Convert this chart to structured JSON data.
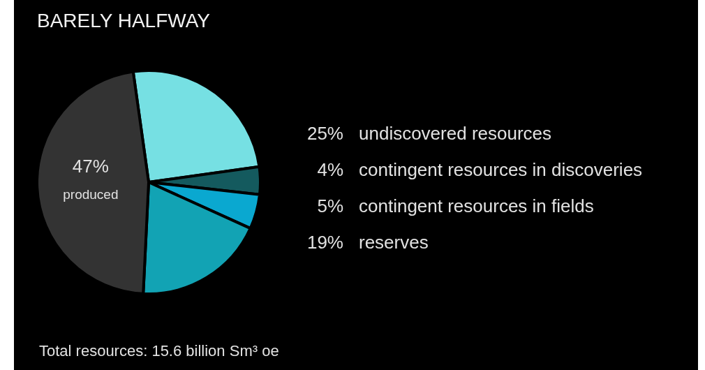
{
  "chart_data": {
    "type": "pie",
    "title": "BARELY HALFWAY",
    "categories": [
      "undiscovered resources",
      "contingent resources in discoveries",
      "contingent resources in fields",
      "reserves",
      "produced"
    ],
    "values": [
      25,
      4,
      5,
      19,
      47
    ],
    "value_labels": [
      "25%",
      "4%",
      "5%",
      "19%",
      "47%"
    ],
    "colors": [
      "#76e0e3",
      "#145a5e",
      "#0aa8d0",
      "#12a3b4",
      "#333333"
    ],
    "annotations": [
      "Total resources: 15.6 billion Sm³ oe"
    ]
  }
}
